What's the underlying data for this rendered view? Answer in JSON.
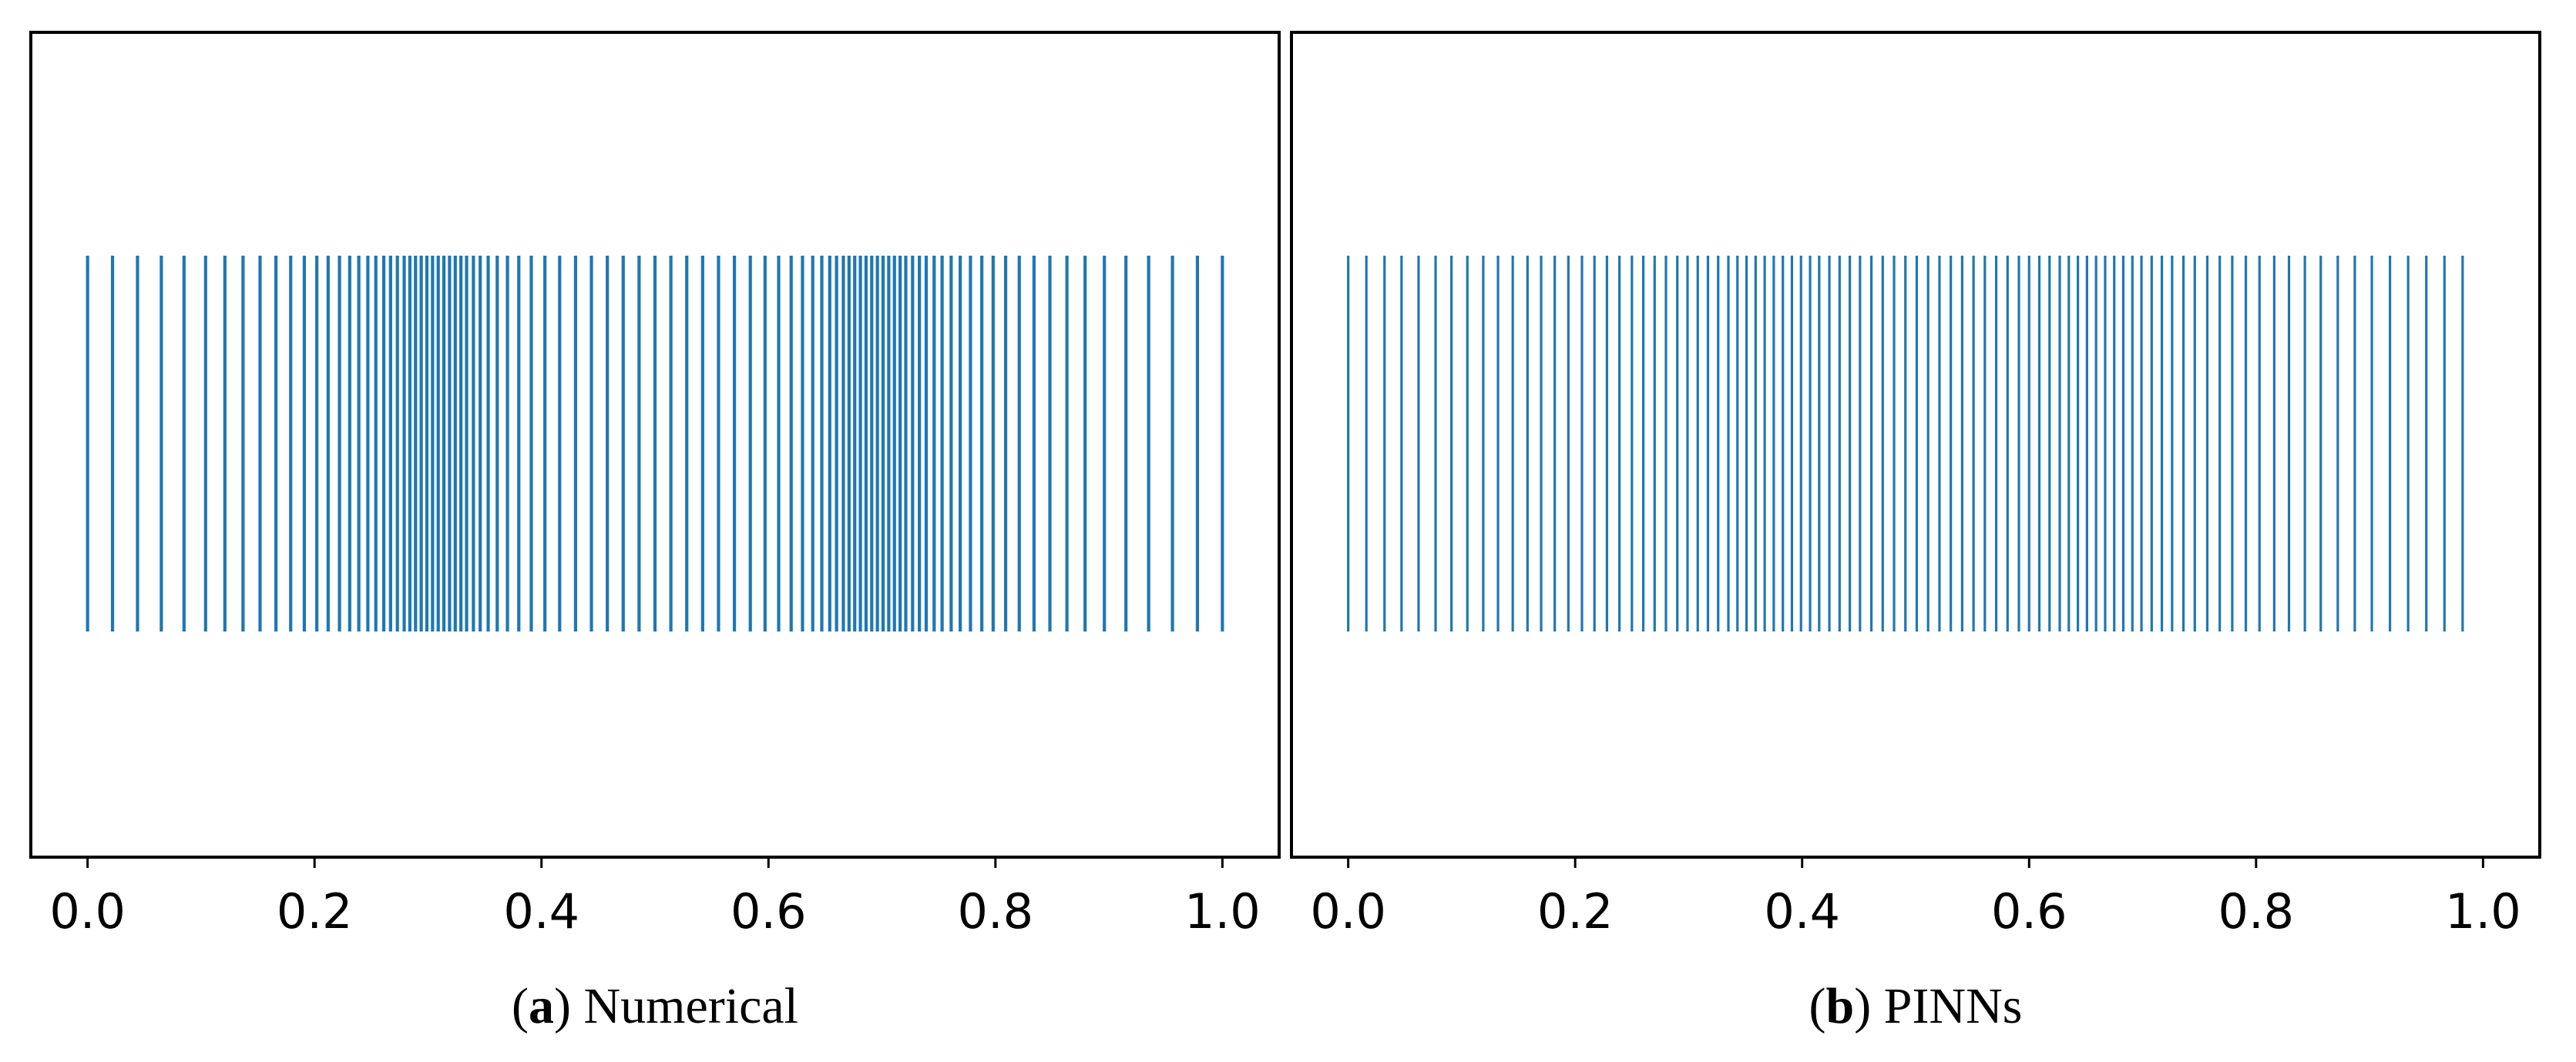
{
  "colors": {
    "tick_color": "#1f77b4",
    "frame_color": "#000000",
    "background": "#ffffff"
  },
  "captions": {
    "a": {
      "open": "(",
      "letter": "a",
      "close": ")",
      "text": "Numerical"
    },
    "b": {
      "open": "(",
      "letter": "b",
      "close": ")",
      "text": "PINNs"
    }
  },
  "chart_data": [
    {
      "type": "eventplot",
      "panel": "a",
      "xlim": [
        -0.05,
        1.05
      ],
      "ylim": [
        0,
        1
      ],
      "xticks": [
        0.0,
        0.2,
        0.4,
        0.6,
        0.8,
        1.0
      ],
      "xtick_labels": [
        "0.0",
        "0.2",
        "0.4",
        "0.6",
        "0.8",
        "1.0"
      ],
      "yticks": [],
      "grid": false,
      "caption": "(a) Numerical",
      "points": [
        0.0,
        0.022,
        0.044,
        0.065,
        0.085,
        0.104,
        0.121,
        0.137,
        0.152,
        0.166,
        0.179,
        0.191,
        0.202,
        0.212,
        0.222,
        0.231,
        0.239,
        0.247,
        0.254,
        0.261,
        0.267,
        0.273,
        0.279,
        0.284,
        0.289,
        0.294,
        0.299,
        0.304,
        0.309,
        0.314,
        0.319,
        0.324,
        0.329,
        0.334,
        0.34,
        0.346,
        0.353,
        0.361,
        0.37,
        0.38,
        0.391,
        0.403,
        0.416,
        0.43,
        0.444,
        0.458,
        0.472,
        0.486,
        0.5,
        0.514,
        0.528,
        0.542,
        0.556,
        0.57,
        0.584,
        0.597,
        0.609,
        0.62,
        0.63,
        0.639,
        0.647,
        0.654,
        0.66,
        0.666,
        0.671,
        0.676,
        0.681,
        0.686,
        0.691,
        0.696,
        0.701,
        0.706,
        0.711,
        0.716,
        0.721,
        0.727,
        0.733,
        0.739,
        0.746,
        0.753,
        0.761,
        0.769,
        0.778,
        0.788,
        0.798,
        0.809,
        0.821,
        0.834,
        0.848,
        0.863,
        0.879,
        0.896,
        0.915,
        0.935,
        0.956,
        0.978,
        1.0
      ]
    },
    {
      "type": "eventplot",
      "panel": "b",
      "xlim": [
        -0.05,
        1.05
      ],
      "ylim": [
        0,
        1
      ],
      "xticks": [
        0.0,
        0.2,
        0.4,
        0.6,
        0.8,
        1.0
      ],
      "xtick_labels": [
        "0.0",
        "0.2",
        "0.4",
        "0.6",
        "0.8",
        "1.0"
      ],
      "yticks": [],
      "grid": false,
      "caption": "(b) PINNs",
      "points": [
        0.0,
        0.016,
        0.032,
        0.047,
        0.062,
        0.077,
        0.091,
        0.105,
        0.119,
        0.132,
        0.145,
        0.158,
        0.17,
        0.182,
        0.194,
        0.206,
        0.217,
        0.228,
        0.239,
        0.25,
        0.26,
        0.27,
        0.28,
        0.29,
        0.299,
        0.308,
        0.317,
        0.326,
        0.335,
        0.343,
        0.351,
        0.359,
        0.367,
        0.375,
        0.383,
        0.391,
        0.399,
        0.407,
        0.415,
        0.424,
        0.433,
        0.442,
        0.451,
        0.461,
        0.471,
        0.481,
        0.491,
        0.501,
        0.511,
        0.521,
        0.531,
        0.541,
        0.551,
        0.561,
        0.571,
        0.581,
        0.591,
        0.6,
        0.609,
        0.618,
        0.627,
        0.635,
        0.643,
        0.651,
        0.659,
        0.667,
        0.675,
        0.683,
        0.691,
        0.699,
        0.708,
        0.717,
        0.726,
        0.736,
        0.746,
        0.757,
        0.768,
        0.779,
        0.791,
        0.803,
        0.816,
        0.829,
        0.843,
        0.857,
        0.872,
        0.887,
        0.902,
        0.918,
        0.934,
        0.95,
        0.966,
        0.982
      ]
    }
  ]
}
